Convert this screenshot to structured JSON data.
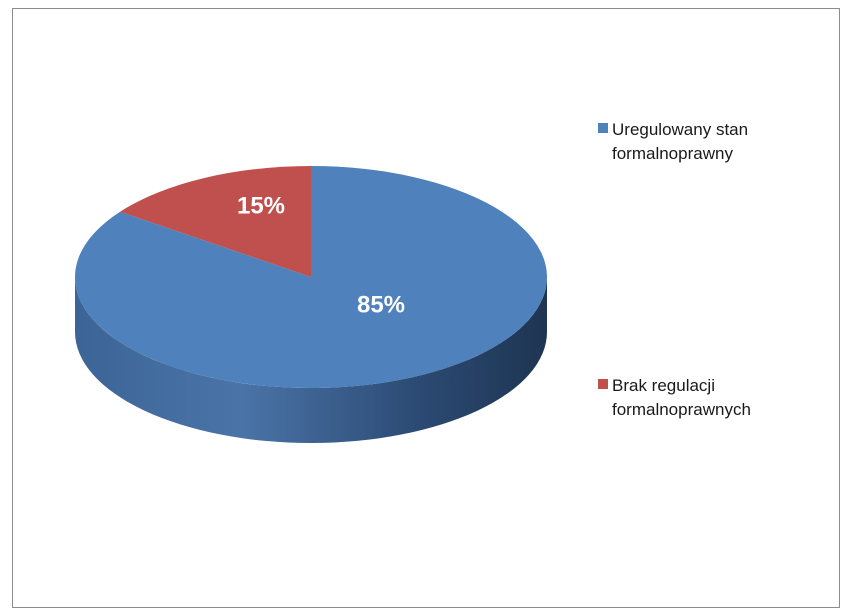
{
  "chart_data": {
    "type": "pie",
    "three_d": true,
    "categories": [
      "Uregulowany stan formalnoprawny",
      "Brak regulacji formalnoprawnych"
    ],
    "values": [
      85,
      15
    ],
    "data_labels": [
      "85%",
      "15%"
    ],
    "colors": [
      "#4F81BD",
      "#C0504D"
    ],
    "legend": {
      "placement": "right",
      "entries": [
        "Uregulowany stan formalnoprawny",
        "Brak regulacji formalnoprawnych"
      ]
    }
  }
}
